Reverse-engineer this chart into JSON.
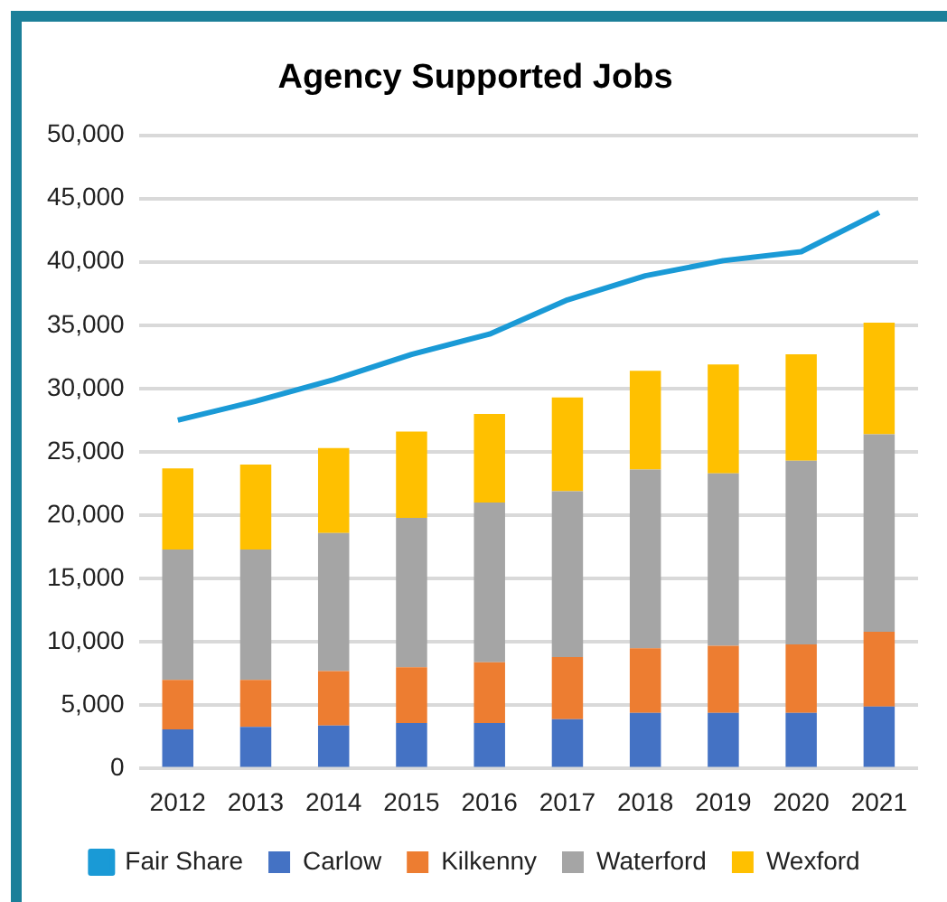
{
  "chart_data": {
    "type": "bar",
    "title": "Agency Supported Jobs",
    "stacked": true,
    "categories": [
      "2012",
      "2013",
      "2014",
      "2015",
      "2016",
      "2017",
      "2018",
      "2019",
      "2020",
      "2021"
    ],
    "series": [
      {
        "name": "Carlow",
        "color": "#4472c4",
        "values": [
          3100,
          3300,
          3400,
          3600,
          3600,
          3900,
          4400,
          4400,
          4400,
          4900
        ]
      },
      {
        "name": "Kilkenny",
        "color": "#ed7d31",
        "values": [
          3900,
          3700,
          4300,
          4400,
          4800,
          4900,
          5100,
          5300,
          5400,
          5900
        ]
      },
      {
        "name": "Waterford",
        "color": "#a5a5a5",
        "values": [
          10300,
          10300,
          10900,
          11800,
          12600,
          13100,
          14100,
          13600,
          14500,
          15600
        ]
      },
      {
        "name": "Wexford",
        "color": "#ffc000",
        "values": [
          6400,
          6700,
          6700,
          6800,
          7000,
          7400,
          7800,
          8600,
          8400,
          8800
        ]
      },
      {
        "name": "Fair Share",
        "type": "line",
        "color": "#1a9ad6",
        "marker": "none",
        "values": [
          27500,
          29000,
          30700,
          32700,
          34300,
          37000,
          38900,
          40100,
          40800,
          43900
        ]
      }
    ],
    "ylim": [
      0,
      50000
    ],
    "yticks": [
      {
        "value": 0,
        "label": "0"
      },
      {
        "value": 5000,
        "label": "5,000"
      },
      {
        "value": 10000,
        "label": "10,000"
      },
      {
        "value": 15000,
        "label": "15,000"
      },
      {
        "value": 20000,
        "label": "20,000"
      },
      {
        "value": 25000,
        "label": "25,000"
      },
      {
        "value": 30000,
        "label": "30,000"
      },
      {
        "value": 35000,
        "label": "35,000"
      },
      {
        "value": 40000,
        "label": "40,000"
      },
      {
        "value": 45000,
        "label": "45,000"
      },
      {
        "value": 50000,
        "label": "50,000"
      }
    ],
    "grid": "y",
    "legend": "bottom"
  }
}
